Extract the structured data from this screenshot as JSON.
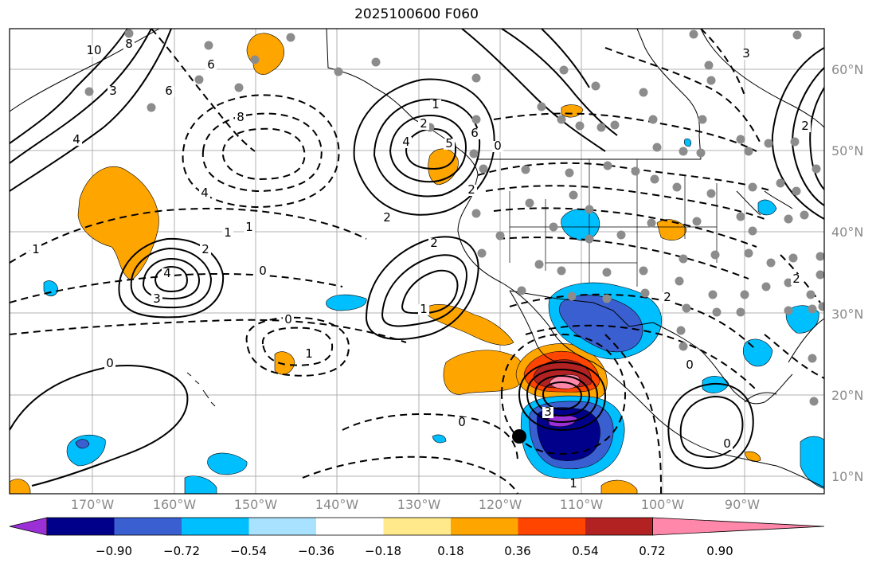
{
  "title": "2025100600 F060",
  "lat_labels": [
    "60°N",
    "50°N",
    "40°N",
    "30°N",
    "20°N",
    "10°N"
  ],
  "lon_labels": [
    "170°W",
    "160°W",
    "150°W",
    "140°W",
    "130°W",
    "120°W",
    "110°W",
    "100°W",
    "90°W"
  ],
  "colorbar": {
    "ticks": [
      "−0.90",
      "−0.72",
      "−0.54",
      "−0.36",
      "−0.18",
      "0.18",
      "0.36",
      "0.54",
      "0.72",
      "0.90"
    ],
    "colors": [
      "#9b30d6",
      "#00008b",
      "#3a5fd0",
      "#00bfff",
      "#a8e2ff",
      "#ffffff",
      "#ffe98a",
      "#ffa500",
      "#ff4500",
      "#b22222",
      "#ff88aa"
    ]
  },
  "contour_labels": [
    "10",
    "8",
    "6",
    "3",
    "4",
    "6",
    "8",
    "4",
    "1",
    "1",
    "4",
    "2",
    "3",
    "0",
    "1",
    "2",
    "0",
    "1",
    "0",
    "1",
    "6",
    "5",
    "2",
    "1",
    "2",
    "0",
    "2",
    "4",
    "3",
    "2",
    "0",
    "0",
    "0",
    "1",
    "2",
    "3",
    "2"
  ]
}
